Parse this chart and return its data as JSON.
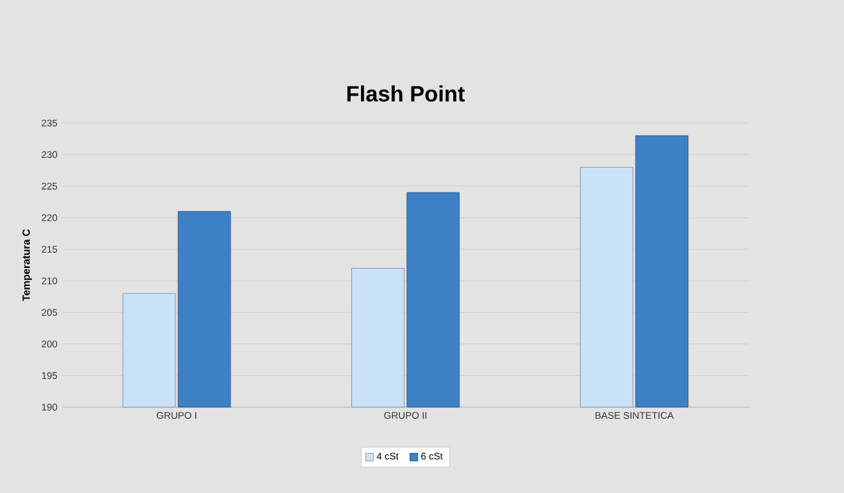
{
  "chart_data": {
    "type": "bar",
    "title": "Flash Point",
    "ylabel": "Temperatura C",
    "categories": [
      "GRUPO I",
      "GRUPO II",
      "BASE SINTETICA"
    ],
    "series": [
      {
        "name": "4 cSt",
        "color": "#c9e2f7",
        "values": [
          208,
          212,
          228
        ]
      },
      {
        "name": "6 cSt",
        "color": "#3d80c6",
        "values": [
          221,
          224,
          233
        ]
      }
    ],
    "ylim": [
      190,
      235
    ],
    "yticks": [
      190,
      195,
      200,
      205,
      210,
      215,
      220,
      225,
      230,
      235
    ],
    "grid": "y",
    "legend": "bottom"
  }
}
